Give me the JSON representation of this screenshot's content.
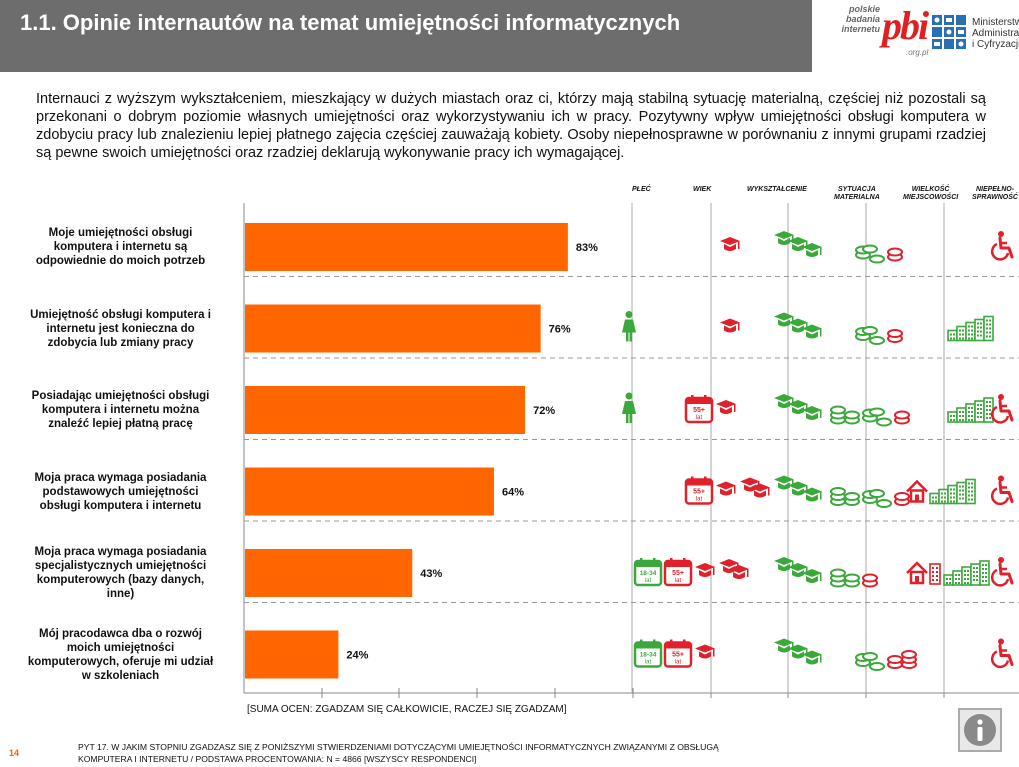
{
  "header": {
    "title": "1.1. Opinie internautów na temat umiejętności informatycznych"
  },
  "logo": {
    "pbi_line1": "polskie",
    "pbi_line2": "badania",
    "pbi_line3": "internetu",
    "pbi_mark": "pbi",
    "pbi_domain": ".org.pl",
    "ministry_line1": "Ministerstwo",
    "ministry_line2": "Administracji",
    "ministry_line3": "i Cyfryzacji"
  },
  "intro": "Internauci z wyższym wykształceniem, mieszkający w dużych miastach oraz ci, którzy mają stabilną sytuację materialną, częściej niż pozostali są przekonani o dobrym poziomie własnych umiejętności oraz wykorzystywaniu ich w pracy. Pozytywny wpływ umiejętności obsługi komputera w zdobyciu pracy lub znalezieniu lepiej płatnego zajęcia częściej zauważają kobiety. Osoby niepełnosprawne w porównaniu z innymi grupami rzadziej są pewne swoich umiejętności oraz rzadziej deklarują wykonywanie pracy ich wymagającej.",
  "columns": {
    "plec": "PŁEĆ",
    "wiek": "WIEK",
    "wyksztalcenie": "WYKSZTAŁCENIE",
    "sytuacja_1": "SYTUACJA",
    "sytuacja_2": "MATERIALNA",
    "wielkosc_1": "WIELKOŚĆ",
    "wielkosc_2": "MIEJSCOWOŚCI",
    "niepeln_1": "NIEPEŁNO-",
    "niepeln_2": "SPRAWNOŚĆ"
  },
  "icon_labels": {
    "age_young": "18-34",
    "age_old": "55+",
    "age_unit": "lat"
  },
  "colors": {
    "bar": "#ff6600",
    "red": "#e0202a",
    "green": "#3aa83a",
    "header_bg": "#6d6d6d"
  },
  "chart_data": {
    "type": "bar",
    "orientation": "horizontal",
    "categories": [
      "Moje umiejętności obsługi komputera i internetu są odpowiednie do moich potrzeb",
      "Umiejętność obsługi komputera i internetu jest konieczna do zdobycia lub zmiany pracy",
      "Posiadając umiejętności obsługi komputera i internetu można znaleźć lepiej płatną pracę",
      "Moja praca wymaga posiadania podstawowych umiejętności obsługi komputera i internetu",
      "Moja praca wymaga posiadania specjalistycznych umiejętności komputerowych (bazy danych, inne)",
      "Mój pracodawca dba o rozwój moich umiejętności komputerowych, oferuje mi udział w szkoleniach"
    ],
    "label_lines": [
      [
        "Moje umiejętności obsługi",
        "komputera i internetu są",
        "odpowiednie do moich potrzeb"
      ],
      [
        "Umiejętność obsługi komputera i",
        "internetu jest konieczna do",
        "zdobycia lub zmiany pracy"
      ],
      [
        "Posiadając umiejętności obsługi",
        "komputera i internetu można",
        "znaleźć lepiej płatną pracę"
      ],
      [
        "Moja praca wymaga posiadania",
        "podstawowych umiejętności",
        "obsługi komputera i internetu"
      ],
      [
        "Moja praca wymaga posiadania",
        "specjalistycznych umiejętności",
        "komputerowych (bazy danych,",
        "inne)"
      ],
      [
        "Mój pracodawca dba o rozwój",
        "moich umiejętności",
        "komputerowych, oferuje mi udział",
        "w szkoleniach"
      ]
    ],
    "values": [
      83,
      76,
      72,
      64,
      43,
      24
    ],
    "value_labels": [
      "83%",
      "76%",
      "72%",
      "64%",
      "43%",
      "24%"
    ],
    "xlim": [
      0,
      100
    ],
    "color": "#ff6600",
    "note": "[SUMA OCEN: ZGADZAM SIĘ CAŁKOWICIE, RACZEJ SIĘ ZGADZAM]",
    "icons": [
      {
        "plec": [],
        "wiek": [
          "grad-red"
        ],
        "wyksztalcenie": [
          "grad3-green"
        ],
        "sytuacja": [
          "coins2-green",
          "coin1-red"
        ],
        "wielkosc": [],
        "niepeln": [
          "wheelchair-red"
        ]
      },
      {
        "plec": [
          "female-green"
        ],
        "wiek": [
          "grad-red"
        ],
        "wyksztalcenie": [
          "grad3-green"
        ],
        "sytuacja": [
          "coins2-green",
          "coin1-red"
        ],
        "wielkosc": [
          "city-green"
        ],
        "niepeln": []
      },
      {
        "plec": [
          "female-green"
        ],
        "wiek": [
          "cal55-red",
          "grad-red"
        ],
        "wyksztalcenie": [
          "grad3-green"
        ],
        "sytuacja": [
          "coins3-green",
          "coins2-green",
          "coin1-red"
        ],
        "wielkosc": [
          "city-green"
        ],
        "niepeln": [
          "wheelchair-red"
        ]
      },
      {
        "plec": [],
        "wiek": [
          "cal55-red",
          "grad-red",
          "grad2-red"
        ],
        "wyksztalcenie": [
          "grad3-green"
        ],
        "sytuacja": [
          "coins3-green",
          "coins2-green",
          "coin1-red"
        ],
        "wielkosc": [
          "house-red",
          "city-green"
        ],
        "niepeln": [
          "wheelchair-red"
        ]
      },
      {
        "plec": [],
        "wiek": [
          "cal1834-green",
          "cal55-red",
          "grad-red",
          "grad2-red"
        ],
        "wyksztalcenie": [
          "grad3-green"
        ],
        "sytuacja": [
          "coins3-green",
          "coin1-red"
        ],
        "wielkosc": [
          "house-red",
          "block-red",
          "city-green"
        ],
        "niepeln": [
          "wheelchair-red"
        ]
      },
      {
        "plec": [],
        "wiek": [
          "cal1834-green",
          "cal55-red",
          "grad-red"
        ],
        "wyksztalcenie": [
          "grad3-green"
        ],
        "sytuacja": [
          "coins2-green",
          "coins2-red"
        ],
        "wielkosc": [],
        "niepeln": [
          "wheelchair-red"
        ]
      }
    ]
  },
  "footer": {
    "page_number": "14",
    "question_line1": "PYT 17. W JAKIM STOPNIU ZGADZASZ SIĘ Z PONIŻSZYMI STWIERDZENIAMI DOTYCZĄCYMI UMIEJĘTNOŚCI INFORMATYCZNYCH ZWIĄZANYMI Z OBSŁUGĄ",
    "question_line2": "KOMPUTERA I INTERNETU / PODSTAWA PROCENTOWANIA: N = 4866 [WSZYSCY RESPONDENCI]"
  },
  "info": {
    "icon": "info-icon"
  }
}
